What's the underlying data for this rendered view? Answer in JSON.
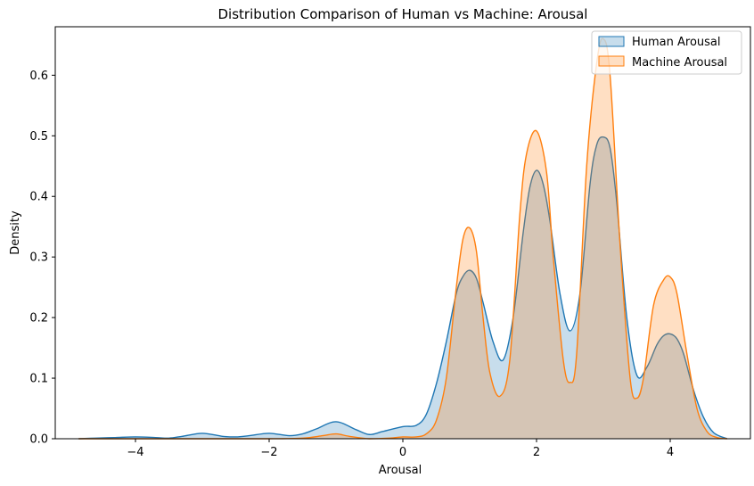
{
  "chart_data": {
    "type": "area",
    "title": "Distribution Comparison of Human vs Machine: Arousal",
    "xlabel": "Arousal",
    "ylabel": "Density",
    "xlim": [
      -5.2,
      5.2
    ],
    "ylim": [
      0,
      0.68
    ],
    "x_ticks": [
      -4,
      -2,
      0,
      2,
      4
    ],
    "x_tick_labels": [
      "−4",
      "−2",
      "0",
      "2",
      "4"
    ],
    "y_ticks": [
      0.0,
      0.1,
      0.2,
      0.3,
      0.4,
      0.5,
      0.6
    ],
    "y_tick_labels": [
      "0.0",
      "0.1",
      "0.2",
      "0.3",
      "0.4",
      "0.5",
      "0.6"
    ],
    "grid": false,
    "legend_position": "top-right",
    "series": [
      {
        "name": "Human Arousal",
        "color": "#1f77b4",
        "fill_opacity": 0.25,
        "x": [
          -4.85,
          -4.6,
          -4.3,
          -4.0,
          -3.7,
          -3.5,
          -3.3,
          -3.0,
          -2.7,
          -2.5,
          -2.3,
          -2.0,
          -1.7,
          -1.5,
          -1.3,
          -1.0,
          -0.7,
          -0.5,
          -0.3,
          0.0,
          0.2,
          0.35,
          0.5,
          0.65,
          0.8,
          0.9,
          1.0,
          1.1,
          1.2,
          1.35,
          1.5,
          1.65,
          1.8,
          1.9,
          2.0,
          2.1,
          2.2,
          2.35,
          2.5,
          2.65,
          2.8,
          2.9,
          3.0,
          3.1,
          3.2,
          3.35,
          3.5,
          3.65,
          3.8,
          3.9,
          4.0,
          4.1,
          4.2,
          4.35,
          4.5,
          4.65,
          4.85
        ],
        "y": [
          0.0,
          0.001,
          0.002,
          0.003,
          0.002,
          0.001,
          0.004,
          0.009,
          0.004,
          0.003,
          0.005,
          0.009,
          0.005,
          0.008,
          0.016,
          0.028,
          0.015,
          0.007,
          0.012,
          0.02,
          0.022,
          0.04,
          0.09,
          0.16,
          0.24,
          0.268,
          0.278,
          0.265,
          0.225,
          0.16,
          0.13,
          0.2,
          0.34,
          0.415,
          0.443,
          0.42,
          0.36,
          0.24,
          0.178,
          0.24,
          0.42,
          0.485,
          0.498,
          0.48,
          0.39,
          0.2,
          0.105,
          0.118,
          0.155,
          0.17,
          0.173,
          0.165,
          0.14,
          0.08,
          0.035,
          0.01,
          0.0
        ]
      },
      {
        "name": "Machine Arousal",
        "color": "#ff7f0e",
        "fill_opacity": 0.25,
        "x": [
          -4.85,
          -3.0,
          -2.0,
          -1.5,
          -1.2,
          -1.0,
          -0.8,
          -0.5,
          -0.2,
          0.0,
          0.2,
          0.35,
          0.5,
          0.65,
          0.8,
          0.9,
          1.0,
          1.1,
          1.2,
          1.3,
          1.45,
          1.6,
          1.75,
          1.85,
          2.0,
          2.15,
          2.25,
          2.4,
          2.5,
          2.6,
          2.75,
          2.9,
          3.0,
          3.1,
          3.25,
          3.4,
          3.5,
          3.6,
          3.75,
          3.9,
          4.0,
          4.1,
          4.25,
          4.4,
          4.55,
          4.7,
          4.85
        ],
        "y": [
          0.0,
          0.0,
          0.0,
          0.001,
          0.005,
          0.008,
          0.004,
          0.0,
          0.001,
          0.003,
          0.003,
          0.008,
          0.03,
          0.1,
          0.25,
          0.33,
          0.348,
          0.31,
          0.2,
          0.11,
          0.07,
          0.13,
          0.37,
          0.47,
          0.508,
          0.44,
          0.3,
          0.13,
          0.093,
          0.14,
          0.45,
          0.62,
          0.66,
          0.6,
          0.32,
          0.1,
          0.067,
          0.1,
          0.22,
          0.262,
          0.267,
          0.24,
          0.14,
          0.05,
          0.012,
          0.002,
          0.0
        ]
      }
    ]
  }
}
